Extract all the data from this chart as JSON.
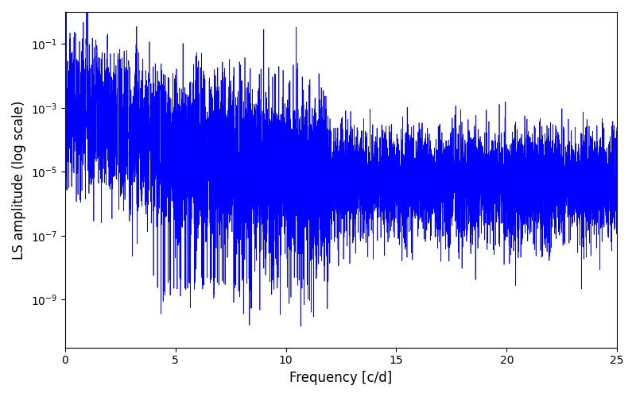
{
  "title": "",
  "xlabel": "Frequency [c/d]",
  "ylabel": "LS amplitude (log scale)",
  "line_color": "#0000FF",
  "line_width": 0.5,
  "xlim": [
    0,
    25
  ],
  "ylim_log_min": -10.5,
  "ylim_log_max": 0,
  "background_color": "#ffffff",
  "figsize": [
    8.0,
    5.0
  ],
  "dpi": 100,
  "freq_max": 25.0,
  "n_points": 10000,
  "seed": 12345
}
